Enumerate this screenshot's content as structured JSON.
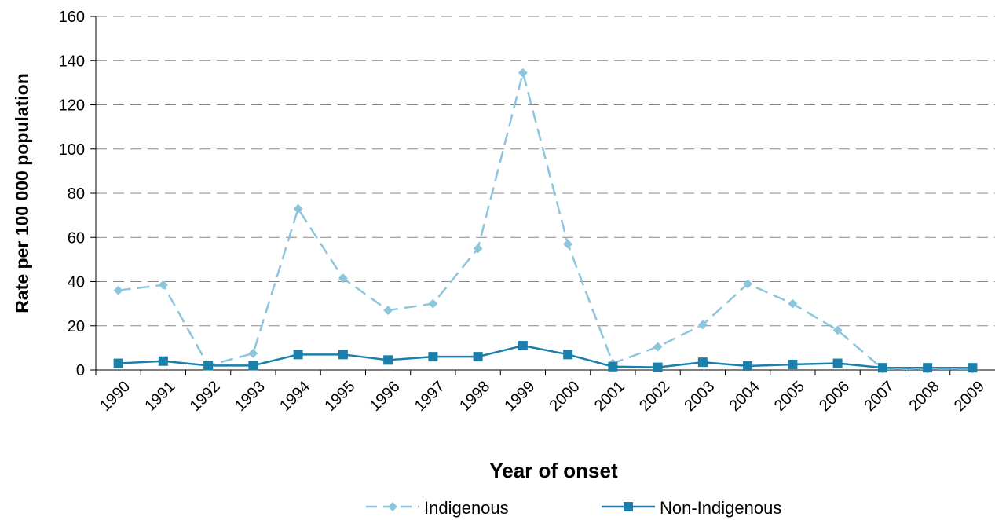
{
  "chart_data": {
    "type": "line",
    "x_label": "Year of onset",
    "y_label": "Rate per 100 000 population",
    "categories": [
      "1990",
      "1991",
      "1992",
      "1993",
      "1994",
      "1995",
      "1996",
      "1997",
      "1998",
      "1999",
      "2000",
      "2001",
      "2002",
      "2003",
      "2004",
      "2005",
      "2006",
      "2007",
      "2008",
      "2009"
    ],
    "series": [
      {
        "name": "Indigenous",
        "color": "#8cc6dc",
        "dashed": true,
        "marker": "diamond",
        "values": [
          36,
          38.5,
          2,
          7.5,
          73,
          41.5,
          27,
          30,
          55,
          134.5,
          57,
          3,
          10.5,
          20.5,
          39,
          30,
          18,
          0.5,
          0.5,
          0.5
        ]
      },
      {
        "name": "Non-Indigenous",
        "color": "#1a7fab",
        "dashed": false,
        "marker": "square",
        "values": [
          3,
          4,
          2,
          2,
          7,
          7,
          4.5,
          6,
          6,
          11,
          7,
          1.5,
          1.2,
          3.5,
          1.8,
          2.5,
          3,
          1,
          1,
          1
        ]
      }
    ],
    "ylim": [
      0,
      160
    ],
    "yticks": [
      0,
      20,
      40,
      60,
      80,
      100,
      120,
      140,
      160
    ],
    "grid": true,
    "legend": "bottom"
  }
}
